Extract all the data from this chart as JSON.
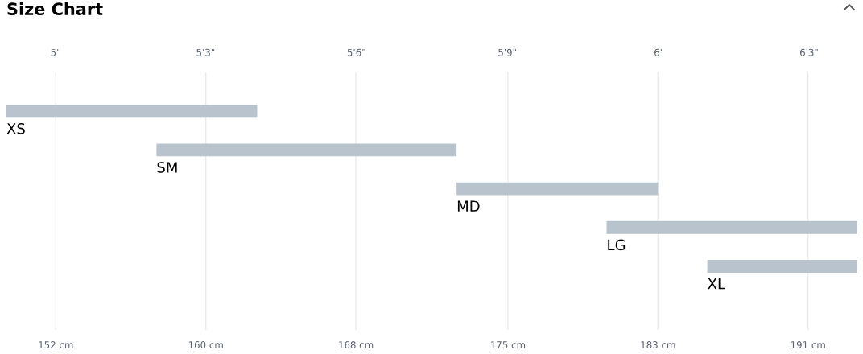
{
  "chart_data": {
    "type": "bar",
    "orientation": "horizontal",
    "title": "Size Chart",
    "categories": [
      "XS",
      "SM",
      "MD",
      "LG",
      "XL"
    ],
    "base": [
      149.9,
      157.5,
      172.7,
      180.3,
      185.4
    ],
    "values": [
      12.7,
      15.2,
      10.2,
      12.7,
      7.6
    ],
    "color": "#b9c3cd",
    "xlim": [
      149.9,
      193.0
    ],
    "xticks": [
      {
        "value": 152.4,
        "label": "152 cm"
      },
      {
        "value": 160.0,
        "label": "160 cm"
      },
      {
        "value": 167.6,
        "label": "168 cm"
      },
      {
        "value": 175.3,
        "label": "175 cm"
      },
      {
        "value": 182.9,
        "label": "183 cm"
      },
      {
        "value": 190.5,
        "label": "191 cm"
      }
    ],
    "x2lim": [
      4.92,
      6.33
    ],
    "x2ticks": [
      {
        "value": 5,
        "label": "5'"
      },
      {
        "value": 5.25,
        "label": "5'3\""
      },
      {
        "value": 5.5,
        "label": "5'6\""
      },
      {
        "value": 5.75,
        "label": "5'9\""
      },
      {
        "value": 6,
        "label": "6'"
      },
      {
        "value": 6.25,
        "label": "6'3\""
      }
    ],
    "grid": "x"
  }
}
